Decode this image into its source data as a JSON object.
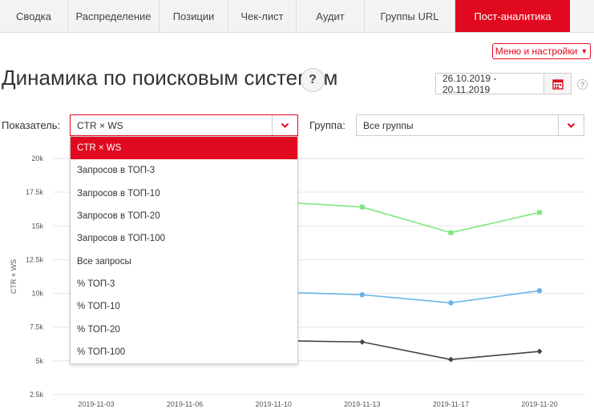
{
  "tabs": [
    {
      "label": "Сводка",
      "active": false
    },
    {
      "label": "Распределение",
      "active": false
    },
    {
      "label": "Позиции",
      "active": false
    },
    {
      "label": "Чек-лист",
      "active": false
    },
    {
      "label": "Аудит",
      "active": false
    },
    {
      "label": "Группы URL",
      "active": false
    },
    {
      "label": "Пост-аналитика",
      "active": true
    }
  ],
  "menu_button": {
    "label": "Меню и настройки",
    "icon": "chevron-down-icon"
  },
  "page_title": "Динамика по поисковым системам",
  "help_label": "?",
  "date_range": {
    "value": "26.10.2019 - 20.11.2019",
    "icon": "calendar-icon"
  },
  "filters": {
    "metric_label": "Показатель:",
    "metric_value": "CTR × WS",
    "group_label": "Группа:",
    "group_value": "Все группы"
  },
  "dropdown": {
    "options": [
      "CTR × WS",
      "Запросов в ТОП-3",
      "Запросов в ТОП-10",
      "Запросов в ТОП-20",
      "Запросов в ТОП-100",
      "Все запросы",
      "% ТОП-3",
      "% ТОП-10",
      "% ТОП-20",
      "% ТОП-100"
    ],
    "selected_index": 0
  },
  "colors": {
    "accent": "#e1091f",
    "green": "#7de87e",
    "blue": "#6ab4e8",
    "dark": "#444444"
  },
  "chart_data": {
    "type": "line",
    "ylabel": "CTR × WS",
    "ylim": [
      2500,
      20000
    ],
    "y_ticks": [
      "2.5k",
      "5k",
      "7.5k",
      "10k",
      "12.5k",
      "15k",
      "17.5k",
      "20k"
    ],
    "y_tick_values": [
      2500,
      5000,
      7500,
      10000,
      12500,
      15000,
      17500,
      20000
    ],
    "x": [
      "2019-11-03",
      "2019-11-06",
      "2019-11-10",
      "2019-11-13",
      "2019-11-17",
      "2019-11-20"
    ],
    "series": [
      {
        "color": "#7de87e",
        "marker": "square",
        "values": [
          null,
          null,
          16800,
          16400,
          14500,
          16000
        ]
      },
      {
        "color": "#6ab4e8",
        "marker": "circle",
        "values": [
          null,
          null,
          10100,
          9900,
          9300,
          10200
        ]
      },
      {
        "color": "#444444",
        "marker": "diamond",
        "values": [
          null,
          null,
          6500,
          6400,
          5100,
          5700
        ]
      }
    ]
  }
}
